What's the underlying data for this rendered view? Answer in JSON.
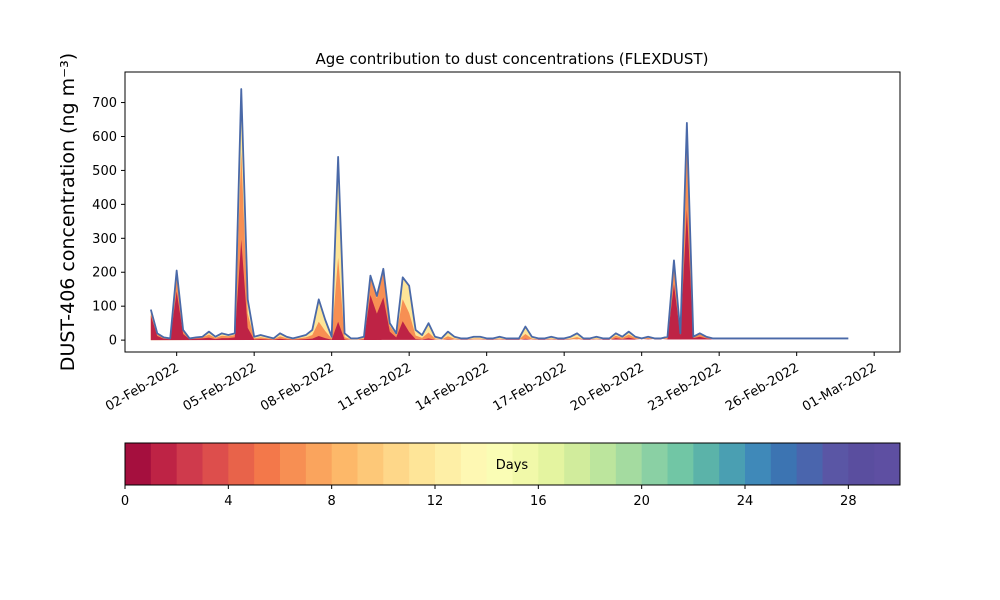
{
  "chart_data": {
    "type": "area",
    "title": "Age contribution to dust concentrations (FLEXDUST)",
    "ylabel": "DUST-406 concentration (ng m⁻³)",
    "xlabel": "",
    "ylim": [
      -35,
      790
    ],
    "xlim": [
      "2022-01-31",
      "2022-03-02"
    ],
    "y_ticks": [
      0,
      100,
      200,
      300,
      400,
      500,
      600,
      700
    ],
    "x_ticks": [
      "02-Feb-2022",
      "05-Feb-2022",
      "08-Feb-2022",
      "11-Feb-2022",
      "14-Feb-2022",
      "17-Feb-2022",
      "20-Feb-2022",
      "23-Feb-2022",
      "26-Feb-2022",
      "01-Mar-2022"
    ],
    "grid": false,
    "x_dates": [
      "2022-02-01 00:00",
      "2022-02-01 06:00",
      "2022-02-01 12:00",
      "2022-02-01 18:00",
      "2022-02-02 00:00",
      "2022-02-02 06:00",
      "2022-02-02 12:00",
      "2022-02-02 18:00",
      "2022-02-03 00:00",
      "2022-02-03 06:00",
      "2022-02-03 12:00",
      "2022-02-03 18:00",
      "2022-02-04 00:00",
      "2022-02-04 06:00",
      "2022-02-04 12:00",
      "2022-02-04 18:00",
      "2022-02-05 00:00",
      "2022-02-05 06:00",
      "2022-02-05 12:00",
      "2022-02-05 18:00",
      "2022-02-06 00:00",
      "2022-02-06 06:00",
      "2022-02-06 12:00",
      "2022-02-06 18:00",
      "2022-02-07 00:00",
      "2022-02-07 06:00",
      "2022-02-07 12:00",
      "2022-02-07 18:00",
      "2022-02-08 00:00",
      "2022-02-08 06:00",
      "2022-02-08 12:00",
      "2022-02-08 18:00",
      "2022-02-09 00:00",
      "2022-02-09 06:00",
      "2022-02-09 12:00",
      "2022-02-09 18:00",
      "2022-02-10 00:00",
      "2022-02-10 06:00",
      "2022-02-10 12:00",
      "2022-02-10 18:00",
      "2022-02-11 00:00",
      "2022-02-11 06:00",
      "2022-02-11 12:00",
      "2022-02-11 18:00",
      "2022-02-12 00:00",
      "2022-02-12 06:00",
      "2022-02-12 12:00",
      "2022-02-12 18:00",
      "2022-02-13 00:00",
      "2022-02-13 06:00",
      "2022-02-13 12:00",
      "2022-02-13 18:00",
      "2022-02-14 00:00",
      "2022-02-14 06:00",
      "2022-02-14 12:00",
      "2022-02-14 18:00",
      "2022-02-15 00:00",
      "2022-02-15 06:00",
      "2022-02-15 12:00",
      "2022-02-15 18:00",
      "2022-02-16 00:00",
      "2022-02-16 06:00",
      "2022-02-16 12:00",
      "2022-02-16 18:00",
      "2022-02-17 00:00",
      "2022-02-17 06:00",
      "2022-02-17 12:00",
      "2022-02-17 18:00",
      "2022-02-18 00:00",
      "2022-02-18 06:00",
      "2022-02-18 12:00",
      "2022-02-18 18:00",
      "2022-02-19 00:00",
      "2022-02-19 06:00",
      "2022-02-19 12:00",
      "2022-02-19 18:00",
      "2022-02-20 00:00",
      "2022-02-20 06:00",
      "2022-02-20 12:00",
      "2022-02-20 18:00",
      "2022-02-21 00:00",
      "2022-02-21 06:00",
      "2022-02-21 12:00",
      "2022-02-21 18:00",
      "2022-02-22 00:00",
      "2022-02-22 06:00",
      "2022-02-22 12:00",
      "2022-02-22 18:00",
      "2022-02-23 00:00",
      "2022-02-23 06:00",
      "2022-02-23 12:00",
      "2022-02-23 18:00",
      "2022-02-24 00:00",
      "2022-02-24 06:00",
      "2022-02-24 12:00",
      "2022-02-24 18:00",
      "2022-02-25 00:00",
      "2022-02-25 06:00",
      "2022-02-25 12:00",
      "2022-02-25 18:00",
      "2022-02-26 00:00",
      "2022-02-26 06:00",
      "2022-02-26 12:00",
      "2022-02-26 18:00",
      "2022-02-27 00:00",
      "2022-02-27 06:00",
      "2022-02-27 12:00",
      "2022-02-27 18:00",
      "2022-02-28 00:00",
      "2022-02-28 06:00",
      "2022-02-28 12:00",
      "2022-02-28 18:00",
      "2022-03-01 00:00"
    ],
    "total": [
      90,
      20,
      8,
      5,
      205,
      30,
      5,
      8,
      10,
      25,
      10,
      20,
      15,
      20,
      740,
      120,
      10,
      15,
      10,
      5,
      20,
      10,
      5,
      10,
      15,
      30,
      120,
      60,
      10,
      540,
      20,
      5,
      5,
      10,
      190,
      130,
      210,
      50,
      20,
      185,
      160,
      30,
      15,
      50,
      10,
      5,
      25,
      10,
      5,
      5,
      10,
      10,
      5,
      5,
      10,
      5,
      5,
      5,
      40,
      10,
      5,
      5,
      10,
      5,
      5,
      10,
      20,
      5,
      5,
      10,
      5,
      5,
      20,
      10,
      25,
      10,
      5,
      10,
      5,
      5,
      10,
      235,
      20,
      640,
      10,
      20,
      10,
      5,
      5,
      5,
      5,
      5,
      5,
      5,
      5,
      5,
      5,
      5,
      5,
      5,
      5,
      5,
      5,
      5,
      5,
      5,
      5,
      5,
      5
    ],
    "young_fraction": [
      0.8,
      0.6,
      0.5,
      0.5,
      0.7,
      0.6,
      0.5,
      0.5,
      0.5,
      0.3,
      0.3,
      0.3,
      0.4,
      0.4,
      0.4,
      0.3,
      0.2,
      0.2,
      0.2,
      0.2,
      0.2,
      0.2,
      0.2,
      0.2,
      0.2,
      0.15,
      0.1,
      0.1,
      0.1,
      0.1,
      0.1,
      0.1,
      0.1,
      0.2,
      0.7,
      0.6,
      0.6,
      0.5,
      0.4,
      0.3,
      0.15,
      0.1,
      0.1,
      0.1,
      0.1,
      0.1,
      0.1,
      0.1,
      0.1,
      0.1,
      0.1,
      0.1,
      0.1,
      0.1,
      0.1,
      0.1,
      0.1,
      0.1,
      0.1,
      0.1,
      0.1,
      0.1,
      0.1,
      0.1,
      0.1,
      0.1,
      0.1,
      0.1,
      0.1,
      0.1,
      0.1,
      0.1,
      0.3,
      0.3,
      0.3,
      0.3,
      0.3,
      0.3,
      0.3,
      0.3,
      0.3,
      0.7,
      0.7,
      0.6,
      0.6,
      0.5,
      0.5,
      0.5,
      0.5,
      0.5,
      0.5,
      0.5,
      0.5,
      0.5,
      0.5,
      0.5,
      0.5,
      0.5,
      0.5,
      0.5,
      0.5,
      0.5,
      0.5,
      0.5,
      0.5,
      0.5,
      0.5,
      0.5,
      0.5
    ],
    "colorbar": {
      "label": "Days",
      "min": 0,
      "max": 30,
      "ticks": [
        0,
        4,
        8,
        12,
        16,
        20,
        24,
        28
      ],
      "colors": [
        "#a50f3e",
        "#be2345",
        "#cf3a4c",
        "#dd4e4c",
        "#e8634a",
        "#f3784a",
        "#f78f53",
        "#faa45d",
        "#fdb869",
        "#fdc878",
        "#fed789",
        "#fee598",
        "#feefa6",
        "#fef8b3",
        "#fafdb5",
        "#f1f9a9",
        "#e4f4a0",
        "#d1ec9c",
        "#bce59d",
        "#a4dba0",
        "#8ad0a4",
        "#71c6a5",
        "#5bb3a9",
        "#4a9fb2",
        "#3f89b9",
        "#3c74b2",
        "#4a65ad",
        "#5a56a5",
        "#5a4e9f",
        "#5e4fa2"
      ]
    },
    "line_color": "#4a69a8"
  }
}
